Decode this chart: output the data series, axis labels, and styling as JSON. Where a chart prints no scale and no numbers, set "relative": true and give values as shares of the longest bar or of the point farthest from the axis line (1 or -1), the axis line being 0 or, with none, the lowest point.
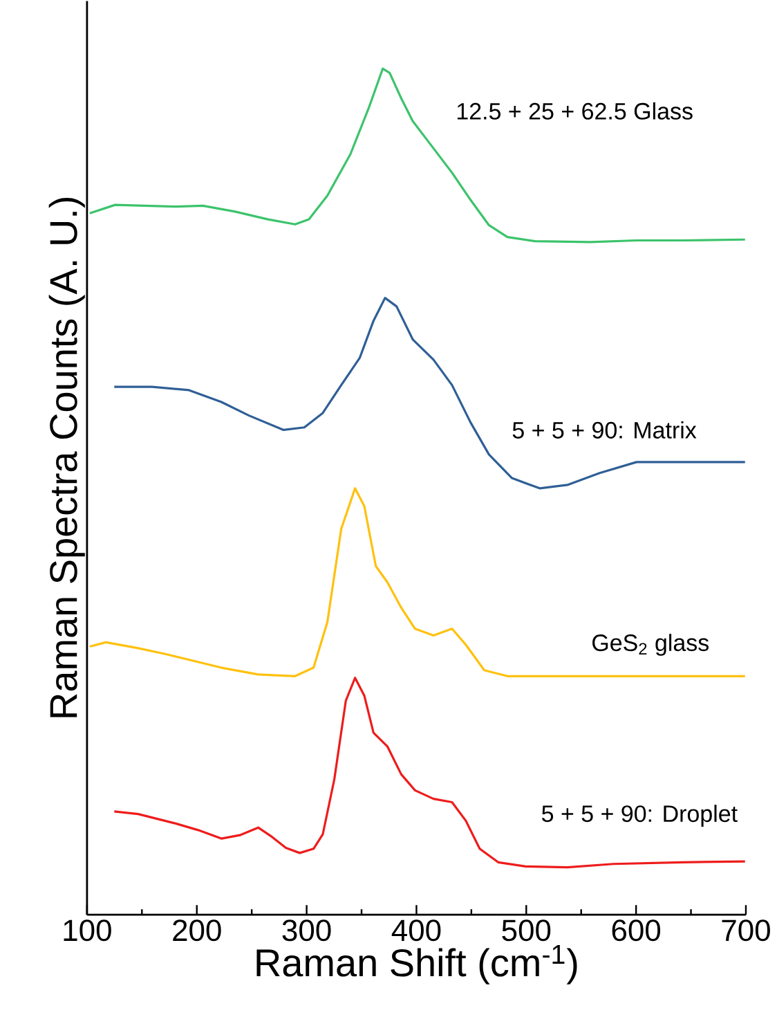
{
  "chart_data": {
    "type": "line",
    "relative": true,
    "xlabel": "Raman Shift (cm$^{-1}$)",
    "ylabel": "Raman Spectra Counts (A. U.)",
    "xlim": [
      100,
      700
    ],
    "xticks": [
      100,
      200,
      300,
      400,
      500,
      600,
      700
    ],
    "grid": false,
    "marker": "none",
    "line_style": "solid",
    "series": [
      {
        "name": "12.5 + 25 + 62.5 Glass",
        "color": "#3cc36b",
        "x": [
          102.5,
          125.6,
          180.3,
          205.5,
          234.9,
          264.3,
          289.5,
          302.1,
          318.9,
          339.9,
          356.7,
          369.3,
          375.6,
          386.1,
          396.6,
          411.3,
          432.4,
          449.2,
          466.0,
          482.8,
          508.0,
          558.4,
          600.4,
          642.4,
          699.2
        ],
        "values": [
          0.829,
          0.839,
          0.837,
          0.838,
          0.831,
          0.822,
          0.816,
          0.822,
          0.85,
          0.899,
          0.954,
          1.0,
          0.995,
          0.965,
          0.938,
          0.913,
          0.877,
          0.845,
          0.815,
          0.801,
          0.796,
          0.795,
          0.797,
          0.797,
          0.798
        ]
      },
      {
        "name": "5 + 5 + 90: Matrix",
        "color": "#2f5f96",
        "x": [
          124.8,
          159.2,
          192.9,
          222.3,
          247.5,
          279.0,
          297.9,
          314.7,
          331.5,
          348.3,
          360.9,
          371.4,
          381.9,
          396.6,
          415.5,
          432.4,
          449.2,
          466.0,
          487.0,
          512.2,
          537.4,
          566.8,
          600.4,
          642.4,
          699.2
        ],
        "values": [
          0.624,
          0.624,
          0.62,
          0.606,
          0.59,
          0.573,
          0.576,
          0.593,
          0.626,
          0.658,
          0.702,
          0.729,
          0.719,
          0.68,
          0.656,
          0.626,
          0.582,
          0.544,
          0.516,
          0.504,
          0.508,
          0.522,
          0.535,
          0.535,
          0.535
        ]
      },
      {
        "name": "GeS$_{2}$ glass",
        "color": "#fec10f",
        "x": [
          102.5,
          117.2,
          146.6,
          171.8,
          197.1,
          222.3,
          255.9,
          289.5,
          306.3,
          318.9,
          331.5,
          344.1,
          352.5,
          363.0,
          373.5,
          386.1,
          398.7,
          415.5,
          432.4,
          445.0,
          461.8,
          482.8,
          558.4,
          642.4,
          699.2
        ],
        "values": [
          0.317,
          0.322,
          0.315,
          0.308,
          0.3,
          0.292,
          0.284,
          0.282,
          0.292,
          0.346,
          0.456,
          0.504,
          0.483,
          0.412,
          0.393,
          0.363,
          0.338,
          0.33,
          0.338,
          0.319,
          0.289,
          0.282,
          0.282,
          0.282,
          0.282
        ]
      },
      {
        "name": "5 + 5 + 90: Droplet",
        "color": "#ee1c1c",
        "x": [
          124.8,
          146.6,
          180.3,
          201.3,
          222.3,
          239.1,
          255.9,
          268.5,
          281.1,
          293.7,
          306.3,
          314.7,
          325.2,
          335.7,
          344.1,
          352.5,
          360.9,
          373.5,
          386.1,
          398.7,
          415.5,
          432.4,
          445.0,
          457.6,
          474.4,
          499.6,
          537.4,
          579.4,
          642.4,
          699.2
        ],
        "values": [
          0.122,
          0.119,
          0.108,
          0.1,
          0.09,
          0.094,
          0.103,
          0.092,
          0.079,
          0.073,
          0.078,
          0.095,
          0.16,
          0.253,
          0.28,
          0.259,
          0.215,
          0.199,
          0.166,
          0.147,
          0.137,
          0.133,
          0.111,
          0.078,
          0.062,
          0.057,
          0.056,
          0.06,
          0.062,
          0.063
        ]
      }
    ]
  }
}
